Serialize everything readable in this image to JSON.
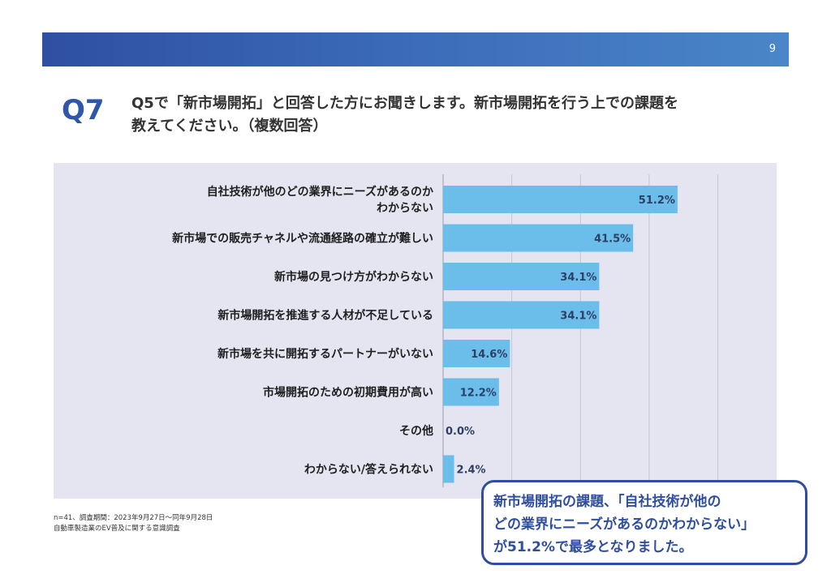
{
  "header": {
    "page_number": "9"
  },
  "question": {
    "label": "Q7",
    "line1": "Q5で「新市場開拓」と回答した方にお聞きします。新市場開拓を行う上での課題を",
    "line2": "教えてください。（複数回答）"
  },
  "footnote": {
    "line1": "n=41、調査期間：2023年9月27日～同年9月28日",
    "line2": "自動車製造業のEV普及に関する意識調査"
  },
  "callout": {
    "line1": "新市場開拓の課題、「自社技術が他の",
    "line2": "どの業界にニーズがあるのかわからない」",
    "line3": "が51.2%で最多となりました。"
  },
  "colors": {
    "bar": "#6bbdea",
    "header_start": "#2f4fa2",
    "header_end": "#4a86c8",
    "accent": "#2f57a7",
    "panel_bg": "#e4e5f1"
  },
  "chart_data": {
    "type": "bar",
    "orientation": "horizontal",
    "categories": [
      [
        "自社技術が他のどの業界にニーズがあるのか",
        "わからない"
      ],
      [
        "新市場での販売チャネルや流通経路の確立が難しい"
      ],
      [
        "新市場の見つけ方がわからない"
      ],
      [
        "新市場開拓を推進する人材が不足している"
      ],
      [
        "新市場を共に開拓するパートナーがいない"
      ],
      [
        "市場開拓のための初期費用が高い"
      ],
      [
        "その他"
      ],
      [
        "わからない/答えられない"
      ]
    ],
    "values": [
      51.2,
      41.5,
      34.1,
      34.1,
      14.6,
      12.2,
      0.0,
      2.4
    ],
    "value_labels": [
      "51.2%",
      "41.5%",
      "34.1%",
      "34.1%",
      "14.6%",
      "12.2%",
      "0.0%",
      "2.4%"
    ],
    "xlim": [
      0,
      70
    ],
    "gridlines": [
      15,
      30,
      45,
      60
    ],
    "unit": "%"
  }
}
